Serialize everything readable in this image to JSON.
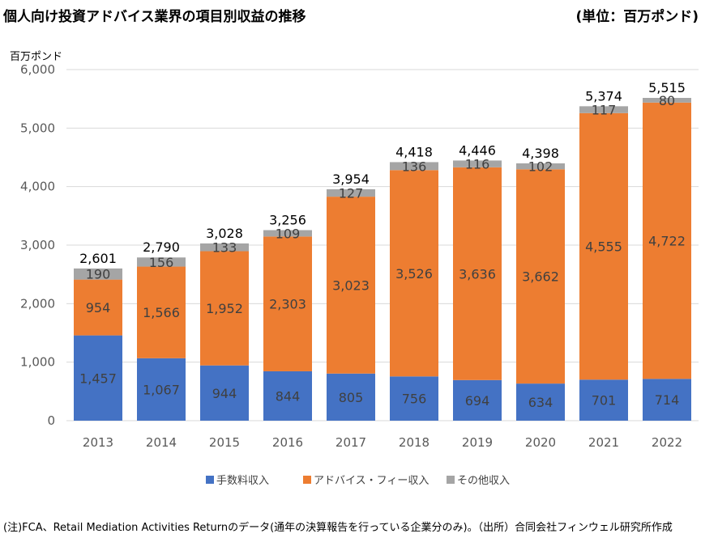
{
  "header": {
    "title": "個人向け投資アドバイス業界の項目別収益の推移",
    "unit": "(単位：百万ポンド)"
  },
  "footnote": "(注)FCA、Retail Mediation Activities Returnのデータ(通年の決算報告を行っている企業分のみ)。（出所）合同会社フィンウェル研究所作成",
  "colors": {
    "series1": "#4472C4",
    "series2": "#ED7D31",
    "series3": "#A5A5A5",
    "gridline": "#D9D9D9",
    "axis_text": "#595959"
  },
  "chart_data": {
    "type": "bar",
    "stacked": true,
    "ylabel": "百万ポンド",
    "ylim": [
      0,
      6000
    ],
    "yticks": [
      "0",
      "1,000",
      "2,000",
      "3,000",
      "4,000",
      "5,000",
      "6,000"
    ],
    "grid": true,
    "legend_position": "bottom",
    "categories": [
      "2013",
      "2014",
      "2015",
      "2016",
      "2017",
      "2018",
      "2019",
      "2020",
      "2021",
      "2022"
    ],
    "series": [
      {
        "name": "手数料収入",
        "values": [
          1457,
          1067,
          944,
          844,
          805,
          756,
          694,
          634,
          701,
          714
        ],
        "labels": [
          "1,457",
          "1,067",
          "944",
          "844",
          "805",
          "756",
          "694",
          "634",
          "701",
          "714"
        ]
      },
      {
        "name": "アドバイス・フィー収入",
        "values": [
          954,
          1566,
          1952,
          2303,
          3023,
          3526,
          3636,
          3662,
          4555,
          4722
        ],
        "labels": [
          "954",
          "1,566",
          "1,952",
          "2,303",
          "3,023",
          "3,526",
          "3,636",
          "3,662",
          "4,555",
          "4,722"
        ]
      },
      {
        "name": "その他収入",
        "values": [
          190,
          156,
          133,
          109,
          127,
          136,
          116,
          102,
          117,
          80
        ],
        "labels": [
          "190",
          "156",
          "133",
          "109",
          "127",
          "136",
          "116",
          "102",
          "117",
          "80"
        ]
      }
    ],
    "totals": [
      2601,
      2790,
      3028,
      3256,
      3954,
      4418,
      4446,
      4398,
      5374,
      5515
    ],
    "total_labels": [
      "2,601",
      "2,790",
      "3,028",
      "3,256",
      "3,954",
      "4,418",
      "4,446",
      "4,398",
      "5,374",
      "5,515"
    ]
  }
}
